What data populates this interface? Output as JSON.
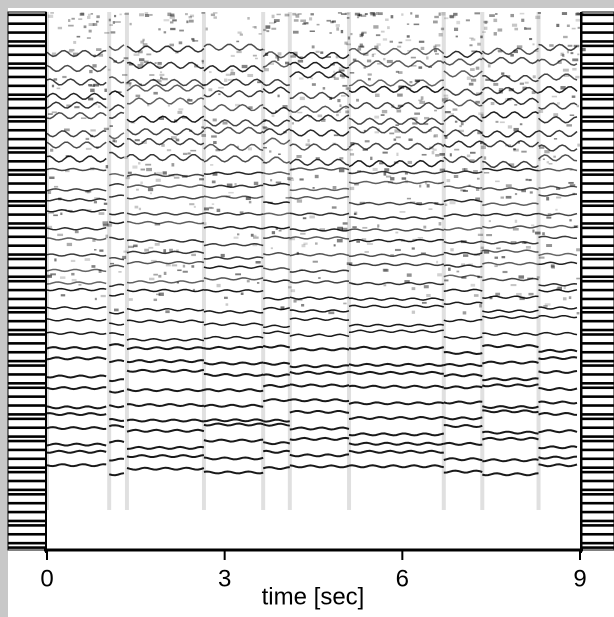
{
  "chart_data": {
    "type": "spectrogram",
    "xlabel": "time [sec]",
    "xlim": [
      0,
      9
    ],
    "xticks": [
      0,
      3,
      6,
      9
    ]
  }
}
